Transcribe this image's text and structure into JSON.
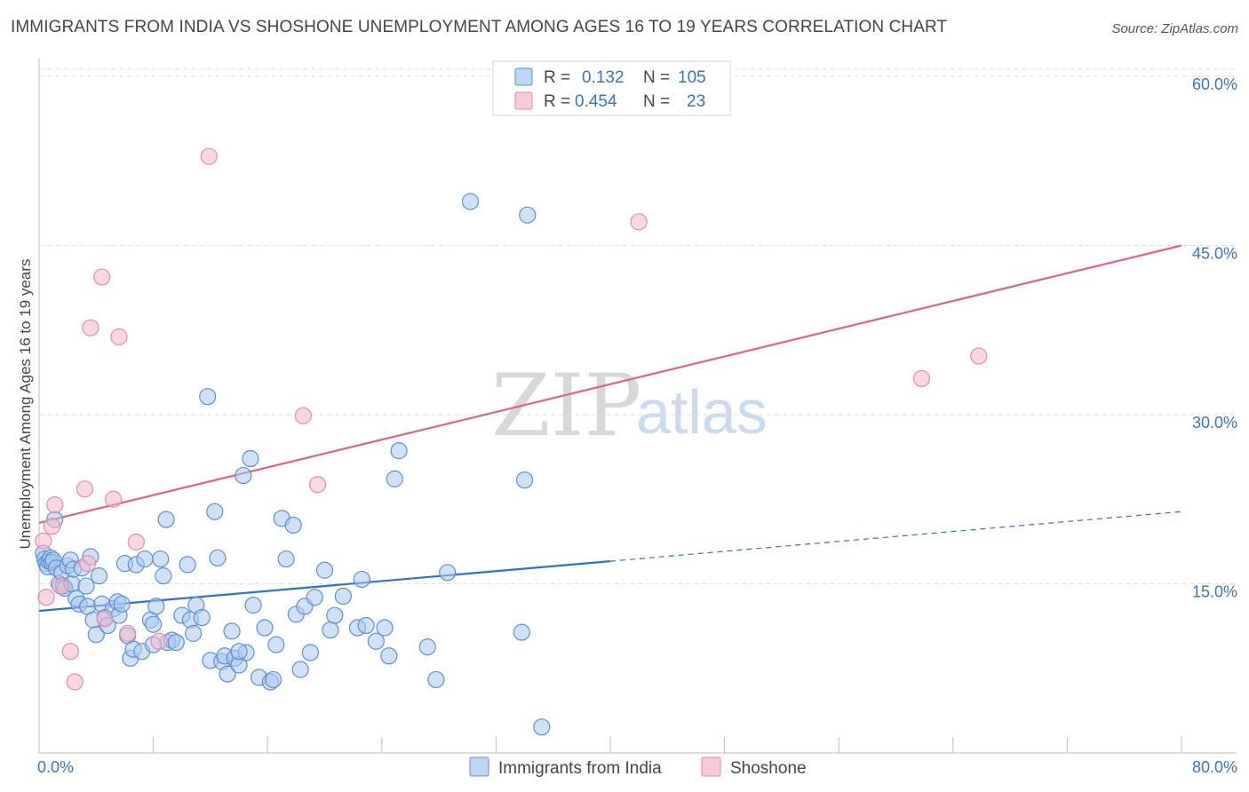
{
  "title": "IMMIGRANTS FROM INDIA VS SHOSHONE UNEMPLOYMENT AMONG AGES 16 TO 19 YEARS CORRELATION CHART",
  "source": "Source: ZipAtlas.com",
  "watermark": {
    "zip": "ZIP",
    "atlas": "atlas"
  },
  "legend_top": [
    {
      "r_label": "R =",
      "r_value": "0.132",
      "n_label": "N =",
      "n_value": "105",
      "color": "#a9c8ef"
    },
    {
      "r_label": "R =",
      "r_value": "0.454",
      "n_label": "N =",
      "n_value": "23",
      "color": "#f5b8ca"
    }
  ],
  "legend_bottom": [
    {
      "label": "Immigrants from India",
      "color": "#a9c8ef"
    },
    {
      "label": "Shoshone",
      "color": "#f5b8ca"
    }
  ],
  "colors": {
    "india_fill": "#a9c8ef",
    "india_stroke": "#5b8fd6",
    "india_line": "#2f70cc",
    "shoshone_fill": "#f5b8ca",
    "shoshone_stroke": "#e88aa6",
    "shoshone_line": "#e0608a",
    "tick_label": "#3a72c4"
  },
  "chart_data": {
    "type": "scatter",
    "title": "IMMIGRANTS FROM INDIA VS SHOSHONE UNEMPLOYMENT AMONG AGES 16 TO 19 YEARS CORRELATION CHART",
    "xlabel": "",
    "ylabel": "Unemployment Among Ages 16 to 19 years",
    "xlim": [
      0,
      80
    ],
    "ylim": [
      0,
      60
    ],
    "x_tick_labels": [
      "0.0%",
      "80.0%"
    ],
    "y_ticks": [
      15,
      30,
      45,
      60
    ],
    "y_tick_labels": [
      "15.0%",
      "30.0%",
      "45.0%",
      "60.0%"
    ],
    "grid": "horizontal dashed",
    "series": [
      {
        "name": "Immigrants from India",
        "r": 0.132,
        "n": 105,
        "trend": {
          "x": [
            0,
            40
          ],
          "y": [
            12.6,
            17.0
          ],
          "dashed_to": [
            80,
            21.4
          ]
        },
        "points": [
          [
            0.3,
            17.7
          ],
          [
            0.4,
            17.2
          ],
          [
            0.5,
            16.8
          ],
          [
            0.6,
            16.5
          ],
          [
            0.7,
            17.0
          ],
          [
            0.8,
            17.3
          ],
          [
            0.9,
            16.9
          ],
          [
            1.0,
            17.1
          ],
          [
            1.1,
            20.7
          ],
          [
            1.2,
            16.4
          ],
          [
            1.4,
            15.0
          ],
          [
            1.6,
            16.0
          ],
          [
            1.7,
            14.8
          ],
          [
            1.8,
            14.6
          ],
          [
            2.0,
            16.6
          ],
          [
            2.2,
            17.1
          ],
          [
            2.3,
            15.0
          ],
          [
            2.4,
            16.3
          ],
          [
            2.6,
            13.7
          ],
          [
            2.8,
            13.2
          ],
          [
            3.0,
            16.4
          ],
          [
            3.3,
            14.8
          ],
          [
            3.4,
            13.0
          ],
          [
            3.6,
            17.4
          ],
          [
            3.8,
            11.8
          ],
          [
            4.0,
            10.5
          ],
          [
            4.2,
            15.7
          ],
          [
            4.4,
            13.2
          ],
          [
            4.6,
            12.0
          ],
          [
            4.8,
            11.3
          ],
          [
            5.2,
            12.8
          ],
          [
            5.5,
            13.4
          ],
          [
            5.6,
            12.2
          ],
          [
            5.8,
            13.2
          ],
          [
            6.0,
            16.8
          ],
          [
            6.2,
            10.4
          ],
          [
            6.4,
            8.4
          ],
          [
            6.6,
            9.2
          ],
          [
            6.8,
            16.7
          ],
          [
            7.2,
            9.0
          ],
          [
            7.4,
            17.2
          ],
          [
            7.8,
            11.8
          ],
          [
            8.0,
            11.4
          ],
          [
            8.2,
            13.0
          ],
          [
            8.5,
            17.2
          ],
          [
            8.7,
            15.7
          ],
          [
            8.9,
            20.7
          ],
          [
            9.0,
            9.8
          ],
          [
            9.3,
            10.0
          ],
          [
            9.6,
            9.8
          ],
          [
            10.0,
            12.2
          ],
          [
            10.4,
            16.7
          ],
          [
            10.6,
            11.8
          ],
          [
            10.8,
            10.6
          ],
          [
            11.0,
            13.1
          ],
          [
            11.4,
            12.0
          ],
          [
            11.8,
            31.6
          ],
          [
            12.0,
            8.2
          ],
          [
            12.3,
            21.4
          ],
          [
            12.5,
            17.3
          ],
          [
            12.8,
            8.1
          ],
          [
            13.0,
            8.6
          ],
          [
            13.2,
            7.0
          ],
          [
            13.5,
            10.8
          ],
          [
            13.7,
            8.4
          ],
          [
            14.0,
            7.8
          ],
          [
            14.3,
            24.6
          ],
          [
            14.5,
            8.9
          ],
          [
            14.8,
            26.1
          ],
          [
            15.0,
            13.1
          ],
          [
            15.4,
            6.7
          ],
          [
            15.8,
            11.1
          ],
          [
            16.2,
            6.3
          ],
          [
            16.4,
            6.5
          ],
          [
            16.6,
            9.6
          ],
          [
            17.0,
            20.8
          ],
          [
            17.3,
            17.2
          ],
          [
            17.8,
            20.2
          ],
          [
            18.0,
            12.3
          ],
          [
            18.3,
            7.4
          ],
          [
            18.6,
            13.0
          ],
          [
            19.0,
            8.9
          ],
          [
            19.3,
            13.8
          ],
          [
            20.0,
            16.2
          ],
          [
            20.4,
            10.9
          ],
          [
            20.7,
            12.2
          ],
          [
            21.3,
            13.9
          ],
          [
            22.3,
            11.1
          ],
          [
            22.6,
            15.4
          ],
          [
            22.9,
            11.3
          ],
          [
            23.6,
            9.9
          ],
          [
            24.2,
            11.1
          ],
          [
            24.5,
            8.6
          ],
          [
            24.9,
            24.3
          ],
          [
            25.2,
            26.8
          ],
          [
            27.2,
            9.4
          ],
          [
            27.8,
            6.5
          ],
          [
            28.6,
            16.0
          ],
          [
            30.2,
            48.9
          ],
          [
            33.8,
            10.7
          ],
          [
            34.0,
            24.2
          ],
          [
            34.2,
            47.7
          ],
          [
            35.2,
            2.3
          ],
          [
            8.0,
            9.6
          ],
          [
            14.0,
            9.0
          ]
        ]
      },
      {
        "name": "Shoshone",
        "r": 0.454,
        "n": 23,
        "trend": {
          "x": [
            0,
            80
          ],
          "y": [
            20.4,
            45.0
          ]
        },
        "points": [
          [
            0.3,
            18.8
          ],
          [
            0.5,
            13.8
          ],
          [
            0.9,
            20.1
          ],
          [
            1.1,
            22.0
          ],
          [
            1.5,
            14.8
          ],
          [
            2.2,
            9.0
          ],
          [
            2.5,
            6.3
          ],
          [
            3.2,
            23.4
          ],
          [
            3.4,
            16.8
          ],
          [
            3.6,
            37.7
          ],
          [
            4.4,
            42.2
          ],
          [
            5.2,
            22.5
          ],
          [
            5.6,
            36.9
          ],
          [
            6.2,
            10.6
          ],
          [
            6.8,
            18.7
          ],
          [
            8.4,
            9.9
          ],
          [
            11.9,
            52.9
          ],
          [
            18.5,
            29.9
          ],
          [
            19.5,
            23.8
          ],
          [
            42.0,
            47.1
          ],
          [
            61.8,
            33.2
          ],
          [
            65.8,
            35.2
          ],
          [
            4.6,
            11.9
          ]
        ]
      }
    ]
  }
}
